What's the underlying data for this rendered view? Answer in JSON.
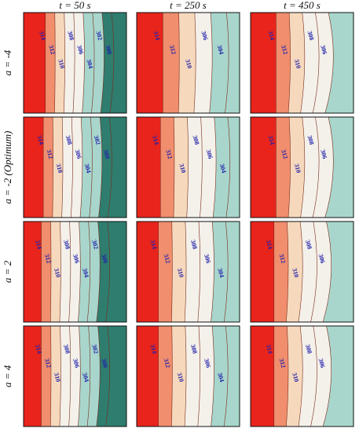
{
  "chart_data": {
    "type": "contour",
    "column_titles": [
      "t = 50 s",
      "t = 250 s",
      "t = 450 s"
    ],
    "row_titles": [
      "a = -4",
      "a = -2 (Optimum)",
      "a = 2",
      "a = 4"
    ],
    "level_unit": "K",
    "colors": {
      "hot": "#e8241c",
      "warm": "#f08e6e",
      "mid": "#f6d9bd",
      "neutral": "#f4f1ea",
      "cool": "#a8d6cc",
      "cold": "#2e7d6e",
      "label": "#2222aa",
      "line": "#7a2a1a"
    },
    "panels": [
      {
        "row": 0,
        "col": 0,
        "levels": [
          314,
          312,
          310,
          308,
          306,
          304,
          302,
          300
        ],
        "hot_fraction": 0.12
      },
      {
        "row": 0,
        "col": 1,
        "levels": [
          314,
          312,
          310,
          306,
          304
        ],
        "hot_fraction": 0.1
      },
      {
        "row": 0,
        "col": 2,
        "levels": [
          314,
          312,
          310,
          308,
          306
        ],
        "hot_fraction": 0.12
      },
      {
        "row": 1,
        "col": 0,
        "levels": [
          314,
          312,
          310,
          308,
          306,
          304,
          302,
          300
        ],
        "hot_fraction": 0.1
      },
      {
        "row": 1,
        "col": 1,
        "levels": [
          314,
          312,
          310,
          308,
          306,
          304
        ],
        "hot_fraction": 0.1
      },
      {
        "row": 1,
        "col": 2,
        "levels": [
          314,
          312,
          310,
          308,
          306
        ],
        "hot_fraction": 0.12
      },
      {
        "row": 2,
        "col": 0,
        "levels": [
          314,
          312,
          310,
          308,
          306,
          304,
          302,
          300
        ],
        "hot_fraction": 0.08
      },
      {
        "row": 2,
        "col": 1,
        "levels": [
          314,
          312,
          310,
          308,
          306,
          304
        ],
        "hot_fraction": 0.08
      },
      {
        "row": 2,
        "col": 2,
        "levels": [
          314,
          312,
          310,
          308,
          306
        ],
        "hot_fraction": 0.1
      },
      {
        "row": 3,
        "col": 0,
        "levels": [
          314,
          312,
          310,
          308,
          306,
          304,
          302,
          300
        ],
        "hot_fraction": 0.08
      },
      {
        "row": 3,
        "col": 1,
        "levels": [
          314,
          312,
          310,
          308,
          306,
          304
        ],
        "hot_fraction": 0.08
      },
      {
        "row": 3,
        "col": 2,
        "levels": [
          314,
          312,
          310,
          308,
          306
        ],
        "hot_fraction": 0.1
      }
    ]
  }
}
